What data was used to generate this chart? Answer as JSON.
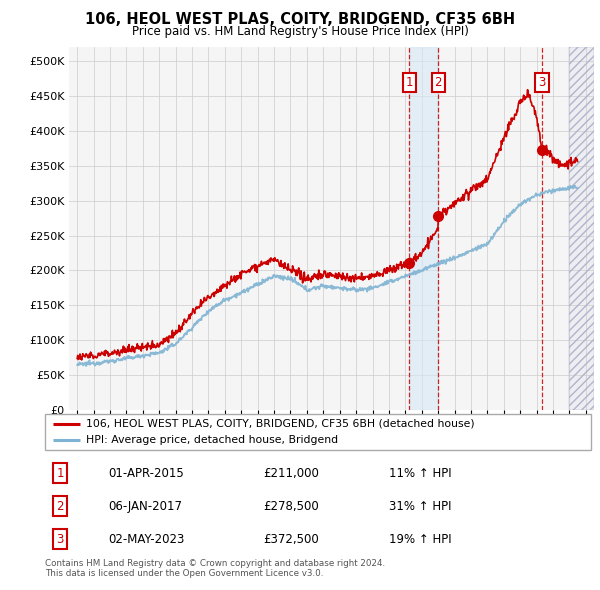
{
  "title": "106, HEOL WEST PLAS, COITY, BRIDGEND, CF35 6BH",
  "subtitle": "Price paid vs. HM Land Registry's House Price Index (HPI)",
  "legend_line1": "106, HEOL WEST PLAS, COITY, BRIDGEND, CF35 6BH (detached house)",
  "legend_line2": "HPI: Average price, detached house, Bridgend",
  "footnote1": "Contains HM Land Registry data © Crown copyright and database right 2024.",
  "footnote2": "This data is licensed under the Open Government Licence v3.0.",
  "sale_markers": [
    {
      "label": "1",
      "date": "01-APR-2015",
      "price": 211000,
      "pct": "11%",
      "x_year": 2015.25
    },
    {
      "label": "2",
      "date": "06-JAN-2017",
      "price": 278500,
      "pct": "31%",
      "x_year": 2017.01
    },
    {
      "label": "3",
      "date": "02-MAY-2023",
      "price": 372500,
      "pct": "19%",
      "x_year": 2023.33
    }
  ],
  "ylim": [
    0,
    520000
  ],
  "xlim_start": 1994.5,
  "xlim_end": 2026.5,
  "yticks": [
    0,
    50000,
    100000,
    150000,
    200000,
    250000,
    300000,
    350000,
    400000,
    450000,
    500000
  ],
  "ytick_labels": [
    "£0",
    "£50K",
    "£100K",
    "£150K",
    "£200K",
    "£250K",
    "£300K",
    "£350K",
    "£400K",
    "£450K",
    "£500K"
  ],
  "hpi_color": "#7fb3d3",
  "price_color": "#cc0000",
  "marker_box_color": "#cc0000",
  "vline_color": "#cc0000",
  "shade_color": "#d6e8f5",
  "hatch_color": "#aaaacc",
  "bg_color": "#f5f5f5"
}
